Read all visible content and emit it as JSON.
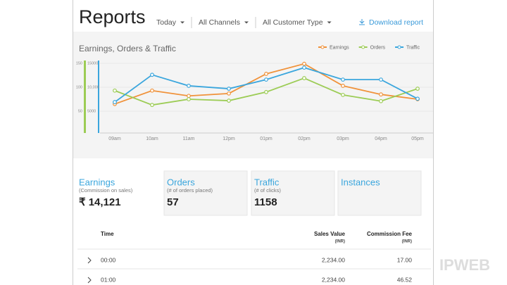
{
  "header": {
    "title": "Reports",
    "filters": [
      "Today",
      "All Channels",
      "All Customer Type"
    ],
    "download": "Download report"
  },
  "chart_data": {
    "type": "line",
    "title": "Earnings, Orders & Traffic",
    "categories": [
      "09am",
      "10am",
      "11am",
      "12pm",
      "01pm",
      "02pm",
      "03pm",
      "04pm",
      "05pm"
    ],
    "series": [
      {
        "name": "Earnings",
        "color": "#f0923a",
        "values": [
          65,
          93,
          82,
          87,
          128,
          149,
          103,
          85,
          75
        ]
      },
      {
        "name": "Orders",
        "color": "#9ccc55",
        "values": [
          93,
          63,
          75,
          72,
          90,
          119,
          84,
          71,
          97
        ]
      },
      {
        "name": "Traffic",
        "color": "#3aa6dd",
        "values": [
          69,
          126,
          103,
          97,
          116,
          141,
          116,
          116,
          76
        ]
      }
    ],
    "ylim": [
      0,
      160
    ],
    "yticks": [
      50,
      100,
      150
    ],
    "y2lim": [
      0,
      16000
    ],
    "y2ticks": [
      5000,
      {
        "value": 10000,
        "label": "10,000"
      },
      15000
    ],
    "legend": "top-right"
  },
  "cards": [
    {
      "title": "Earnings",
      "subtitle": "(Commission on sales)",
      "value": "₹ 14,121"
    },
    {
      "title": "Orders",
      "subtitle": "(# of orders placed)",
      "value": "57"
    },
    {
      "title": "Traffic",
      "subtitle": "(# of clicks)",
      "value": "1158"
    },
    {
      "title": "Instances"
    }
  ],
  "table": {
    "columns": [
      {
        "label": "Time"
      },
      {
        "label": "Sales Value",
        "unit": "(INR)"
      },
      {
        "label": "Commission Fee",
        "unit": "(INR)"
      }
    ],
    "rows": [
      [
        "00:00",
        "2,234.00",
        "17.00"
      ],
      [
        "01:00",
        "2,234.00",
        "46.52"
      ]
    ]
  },
  "watermark": "IPWEB"
}
